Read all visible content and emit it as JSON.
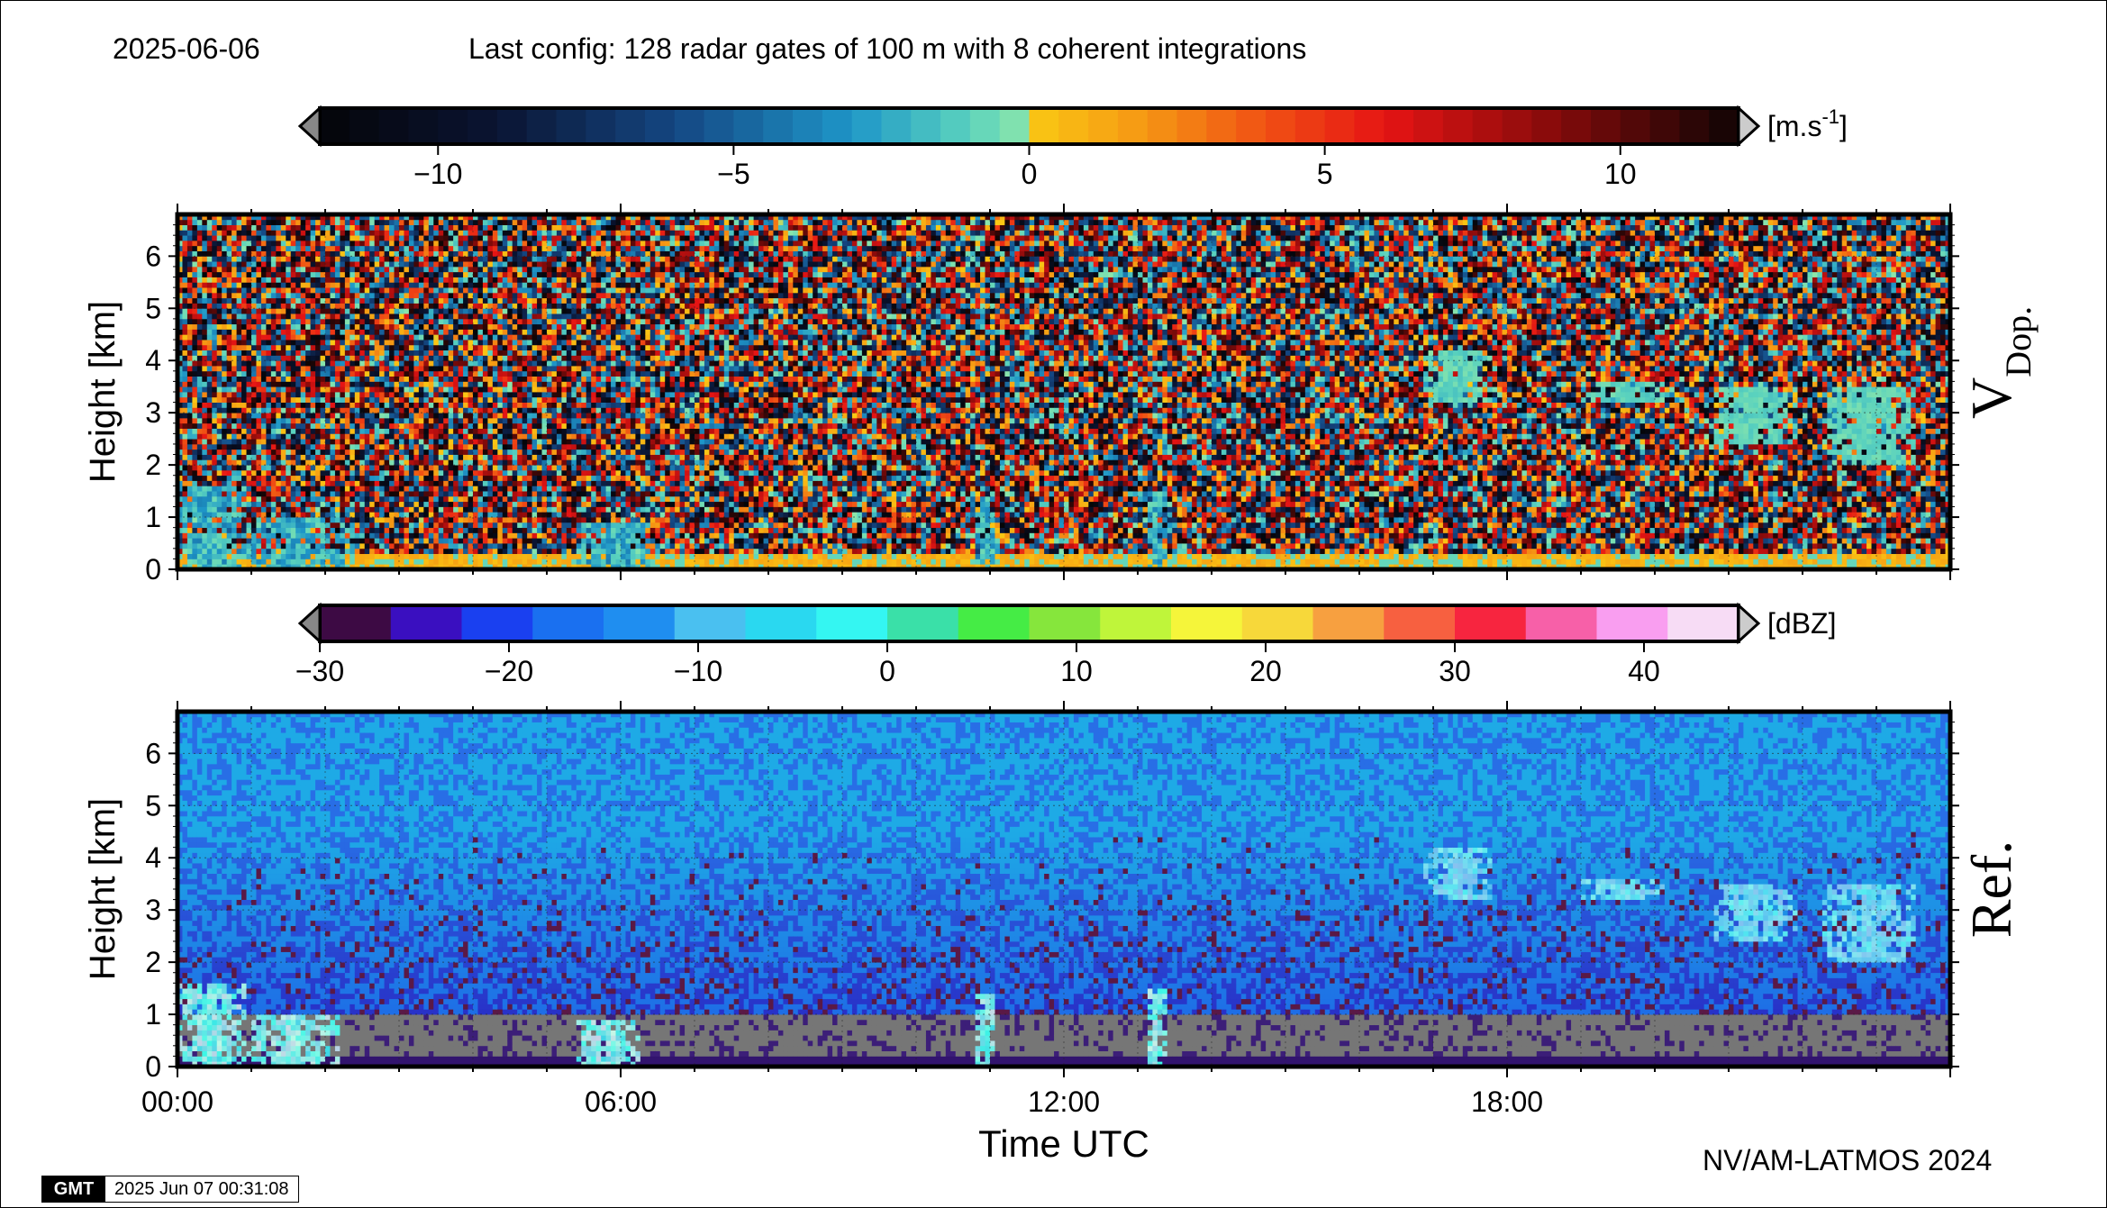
{
  "header": {
    "date": "2025-06-06",
    "config": "Last config: 128 radar gates of 100 m with 8 coherent integrations"
  },
  "footer": {
    "credit": "NV/AM-LATMOS 2024",
    "gmt_logo": "GMT",
    "gmt_timestamp": "2025 Jun 07 00:31:08"
  },
  "colorbars": {
    "doppler": {
      "unit_text": "[m.s",
      "unit_exp": "-1",
      "unit_close": "]",
      "ticks": [
        "−10",
        "−5",
        "0",
        "5",
        "10"
      ],
      "tick_values": [
        -10,
        -5,
        0,
        5,
        10
      ],
      "range": [
        -12,
        12
      ],
      "n_bins": 48
    },
    "reflectivity": {
      "unit_text": "[dBZ]",
      "ticks": [
        "−30",
        "−20",
        "−10",
        "0",
        "10",
        "20",
        "30",
        "40"
      ],
      "tick_values": [
        -30,
        -20,
        -10,
        0,
        10,
        20,
        30,
        40
      ],
      "range": [
        -30,
        45
      ],
      "n_bins": 20,
      "colors": [
        "#3d0a44",
        "#3a0fc0",
        "#1a40f0",
        "#1a70f0",
        "#1f8ef0",
        "#4ac0f0",
        "#2ad8f0",
        "#34f6f2",
        "#3ae0a8",
        "#45ec45",
        "#86e63c",
        "#bff53a",
        "#f5f53a",
        "#f7d83a",
        "#f7a040",
        "#f76040",
        "#f7253f",
        "#f760a8",
        "#f99ef0",
        "#f7dcf5"
      ]
    }
  },
  "chart_data": [
    {
      "type": "heatmap",
      "name": "V",
      "name_sub": "Dop.",
      "ylabel": "Height [km]",
      "ylim": [
        0,
        6.8
      ],
      "yticks": [
        "0",
        "1",
        "2",
        "3",
        "4",
        "5",
        "6"
      ],
      "xlim": [
        0,
        24
      ],
      "features": [
        {
          "t0": 0.0,
          "t1": 0.9,
          "h0": 0.0,
          "h1": 1.6,
          "kind": "precip"
        },
        {
          "t0": 0.9,
          "t1": 2.4,
          "h0": 0.0,
          "h1": 1.0,
          "kind": "precip"
        },
        {
          "t0": 5.4,
          "t1": 6.4,
          "h0": 0.0,
          "h1": 0.9,
          "kind": "precip"
        },
        {
          "t0": 10.8,
          "t1": 11.1,
          "h0": 0.0,
          "h1": 1.4,
          "kind": "precip"
        },
        {
          "t0": 13.1,
          "t1": 13.4,
          "h0": 0.0,
          "h1": 1.5,
          "kind": "precip"
        },
        {
          "t0": 16.9,
          "t1": 17.8,
          "h0": 3.2,
          "h1": 4.2,
          "kind": "cloud"
        },
        {
          "t0": 19.0,
          "t1": 20.1,
          "h0": 3.2,
          "h1": 3.6,
          "kind": "cloud"
        },
        {
          "t0": 20.8,
          "t1": 21.9,
          "h0": 2.4,
          "h1": 3.5,
          "kind": "cloud"
        },
        {
          "t0": 22.3,
          "t1": 23.5,
          "h0": 2.0,
          "h1": 3.5,
          "kind": "cloud"
        }
      ]
    },
    {
      "type": "heatmap",
      "name": "Ref.",
      "ylabel": "Height [km]",
      "xlabel": "Time UTC",
      "ylim": [
        0,
        6.8
      ],
      "yticks": [
        "0",
        "1",
        "2",
        "3",
        "4",
        "5",
        "6"
      ],
      "xlim": [
        0,
        24
      ],
      "xticks": [
        "00:00",
        "06:00",
        "12:00",
        "18:00"
      ],
      "xtick_values": [
        0,
        6,
        12,
        18
      ],
      "features": [
        {
          "t0": 0.0,
          "t1": 0.9,
          "h0": 0.0,
          "h1": 1.6,
          "kind": "precip"
        },
        {
          "t0": 0.9,
          "t1": 2.2,
          "h0": 0.0,
          "h1": 1.0,
          "kind": "precip"
        },
        {
          "t0": 5.4,
          "t1": 6.3,
          "h0": 0.0,
          "h1": 0.9,
          "kind": "precip"
        },
        {
          "t0": 10.8,
          "t1": 11.1,
          "h0": 0.0,
          "h1": 1.4,
          "kind": "precip"
        },
        {
          "t0": 13.1,
          "t1": 13.4,
          "h0": 0.0,
          "h1": 1.5,
          "kind": "precip"
        },
        {
          "t0": 16.9,
          "t1": 17.8,
          "h0": 3.2,
          "h1": 4.2,
          "kind": "cloud"
        },
        {
          "t0": 19.0,
          "t1": 20.1,
          "h0": 3.2,
          "h1": 3.6,
          "kind": "cloud"
        },
        {
          "t0": 20.8,
          "t1": 21.9,
          "h0": 2.4,
          "h1": 3.5,
          "kind": "cloud"
        },
        {
          "t0": 22.3,
          "t1": 23.5,
          "h0": 2.0,
          "h1": 3.5,
          "kind": "cloud"
        }
      ]
    }
  ]
}
